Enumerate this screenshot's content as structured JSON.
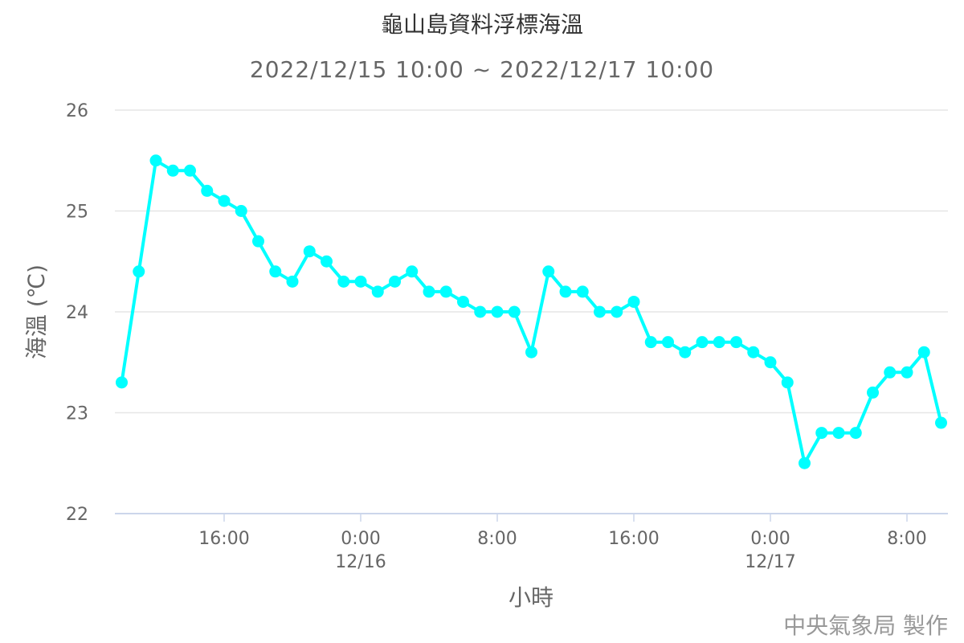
{
  "chart_data": {
    "type": "line",
    "title": "龜山島資料浮標海溫",
    "subtitle": "2022/12/15 10:00 ~ 2022/12/17 10:00",
    "xlabel": "小時",
    "ylabel": "海溫 (℃)",
    "ylim": [
      22,
      26
    ],
    "yticks": [
      "22",
      "23",
      "24",
      "25",
      "26"
    ],
    "xticks": [
      {
        "label": "16:00",
        "date": "",
        "hour": 6
      },
      {
        "label": "0:00",
        "date": "12/16",
        "hour": 14
      },
      {
        "label": "8:00",
        "date": "",
        "hour": 22
      },
      {
        "label": "16:00",
        "date": "",
        "hour": 30
      },
      {
        "label": "0:00",
        "date": "12/17",
        "hour": 38
      },
      {
        "label": "8:00",
        "date": "",
        "hour": 46
      }
    ],
    "x_start": "2022/12/15 10:00",
    "x_step": "1 hour",
    "grid": true,
    "legend": "none",
    "color": "#00FFFF",
    "values": [
      23.3,
      24.4,
      25.5,
      25.4,
      25.4,
      25.2,
      25.1,
      25.0,
      24.7,
      24.4,
      24.3,
      24.6,
      24.5,
      24.3,
      24.3,
      24.2,
      24.3,
      24.4,
      24.2,
      24.2,
      24.1,
      24.0,
      24.0,
      24.0,
      23.6,
      24.4,
      24.2,
      24.2,
      24.0,
      24.0,
      24.1,
      23.7,
      23.7,
      23.6,
      23.7,
      23.7,
      23.7,
      23.6,
      23.5,
      23.3,
      22.5,
      22.8,
      22.8,
      22.8,
      23.2,
      23.4,
      23.4,
      23.6,
      22.9
    ]
  },
  "credit": "中央氣象局 製作"
}
